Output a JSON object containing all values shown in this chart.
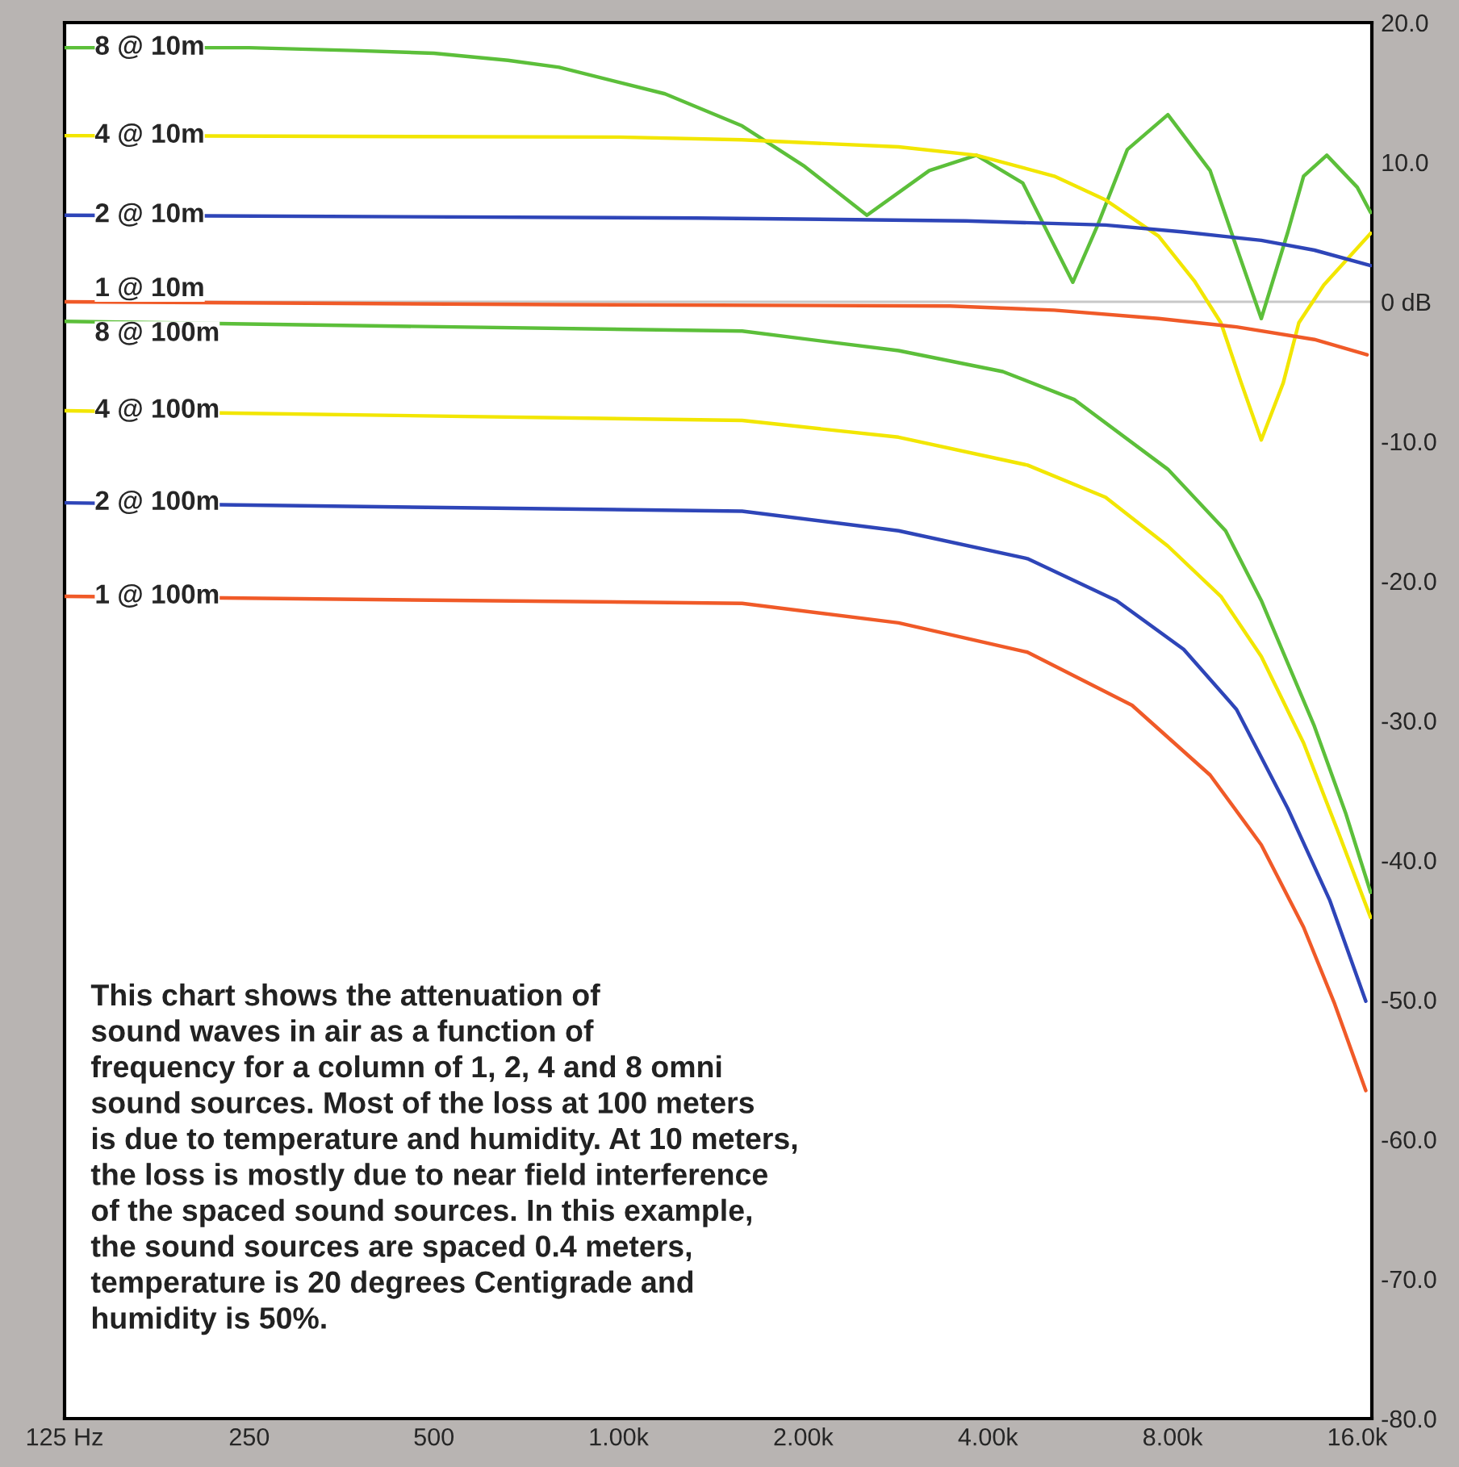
{
  "chart_data": {
    "type": "line",
    "log": "x",
    "grid": false,
    "legend": false,
    "marker": "none",
    "line_style": "solid",
    "xlim": [
      125,
      16900
    ],
    "ylim": [
      -80,
      20
    ],
    "xticks": [
      {
        "value": 125,
        "label": "125 Hz"
      },
      250,
      500,
      {
        "value": 1000,
        "label": "1.00k"
      },
      {
        "value": 2000,
        "label": "2.00k"
      },
      {
        "value": 4000,
        "label": "4.00k"
      },
      {
        "value": 8000,
        "label": "8.00k"
      },
      {
        "value": 16000,
        "label": "16.0k"
      }
    ],
    "yticks": [
      {
        "value": 20,
        "label": "20.0"
      },
      {
        "value": 10,
        "label": "10.0"
      },
      {
        "value": 0,
        "label": "0 dB"
      },
      {
        "value": -10,
        "label": "-10.0"
      },
      {
        "value": -20,
        "label": "-20.0"
      },
      {
        "value": -30,
        "label": "-30.0"
      },
      {
        "value": -40,
        "label": "-40.0"
      },
      {
        "value": -50,
        "label": "-50.0"
      },
      {
        "value": -60,
        "label": "-60.0"
      },
      {
        "value": -70,
        "label": "-70.0"
      },
      {
        "value": -80,
        "label": "-80.0"
      }
    ],
    "ref_lines": [
      {
        "axis": "y",
        "value": 0,
        "color": "#c8c8c8"
      }
    ],
    "series": [
      {
        "name": "8 @ 10m",
        "color": "#5cbf3a",
        "x": [
          125,
          250,
          370,
          500,
          660,
          800,
          1190,
          1590,
          2010,
          2540,
          3210,
          3830,
          4560,
          5040,
          5500,
          6040,
          6750,
          7860,
          9210,
          10170,
          11160,
          12330,
          13080,
          14270,
          16000,
          16820
        ],
        "values": [
          18.2,
          18.2,
          18.0,
          17.8,
          17.3,
          16.8,
          14.9,
          12.6,
          9.7,
          6.2,
          9.4,
          10.5,
          8.5,
          4.7,
          1.4,
          5.5,
          10.9,
          13.4,
          9.4,
          3.9,
          -1.2,
          5.0,
          9.0,
          10.5,
          8.2,
          6.4
        ]
      },
      {
        "name": "4 @ 10m",
        "color": "#f2e600",
        "x": [
          125,
          1000,
          1590,
          2860,
          3830,
          5130,
          6220,
          7590,
          8680,
          9590,
          10350,
          11160,
          12120,
          12850,
          14110,
          16820
        ],
        "values": [
          11.9,
          11.8,
          11.6,
          11.1,
          10.5,
          9.0,
          7.3,
          4.7,
          1.5,
          -1.5,
          -5.8,
          -9.9,
          -5.8,
          -1.5,
          1.2,
          4.9
        ]
      },
      {
        "name": "2 @ 10m",
        "color": "#2e45b8",
        "x": [
          125,
          1340,
          3680,
          6220,
          8340,
          11160,
          13620,
          16820
        ],
        "values": [
          6.2,
          6.0,
          5.8,
          5.5,
          5.0,
          4.4,
          3.7,
          2.6
        ]
      },
      {
        "name": "1 @ 10m",
        "color": "#f05a28",
        "x": [
          125,
          800,
          3470,
          5130,
          7590,
          10170,
          13620,
          16600
        ],
        "values": [
          0.0,
          -0.2,
          -0.3,
          -0.6,
          -1.2,
          -1.8,
          -2.7,
          -3.8
        ]
      },
      {
        "name": "8 @ 100m",
        "color": "#5cbf3a",
        "x": [
          125,
          1590,
          2860,
          4230,
          5530,
          7860,
          9760,
          11160,
          13620,
          15310,
          16820
        ],
        "values": [
          -1.4,
          -2.1,
          -3.5,
          -5.0,
          -7.0,
          -12.0,
          -16.4,
          -21.4,
          -30.4,
          -36.6,
          -42.3
        ]
      },
      {
        "name": "4 @ 100m",
        "color": "#f2e600",
        "x": [
          125,
          1590,
          2860,
          4640,
          6220,
          7860,
          9590,
          11160,
          13080,
          14960,
          16820
        ],
        "values": [
          -7.8,
          -8.5,
          -9.7,
          -11.7,
          -14.0,
          -17.5,
          -21.1,
          -25.4,
          -31.6,
          -38.2,
          -44.1
        ]
      },
      {
        "name": "2 @ 100m",
        "color": "#2e45b8",
        "x": [
          125,
          1590,
          2860,
          4640,
          6480,
          8340,
          10170,
          12330,
          14440,
          16520
        ],
        "values": [
          -14.4,
          -15.0,
          -16.4,
          -18.4,
          -21.4,
          -24.9,
          -29.2,
          -36.3,
          -42.9,
          -50.1
        ]
      },
      {
        "name": "1 @ 100m",
        "color": "#f05a28",
        "x": [
          125,
          1590,
          2860,
          4640,
          6870,
          9210,
          11160,
          13080,
          14700,
          16520
        ],
        "values": [
          -21.1,
          -21.6,
          -23.0,
          -25.1,
          -28.9,
          -33.9,
          -38.9,
          -44.8,
          -50.3,
          -56.5
        ]
      }
    ],
    "annotations": [
      "This chart shows the attenuation of\nsound waves in air as a function of\nfrequency for a column of 1, 2, 4 and 8 omni\nsound sources. Most of the loss at 100 meters\nis due to temperature and humidity. At 10 meters,\nthe loss is mostly due to near field interference\nof the spaced sound sources. In this example,\nthe sound sources are spaced 0.4 meters,\ntemperature is 20 degrees Centigrade and\nhumidity is 50%."
    ]
  }
}
